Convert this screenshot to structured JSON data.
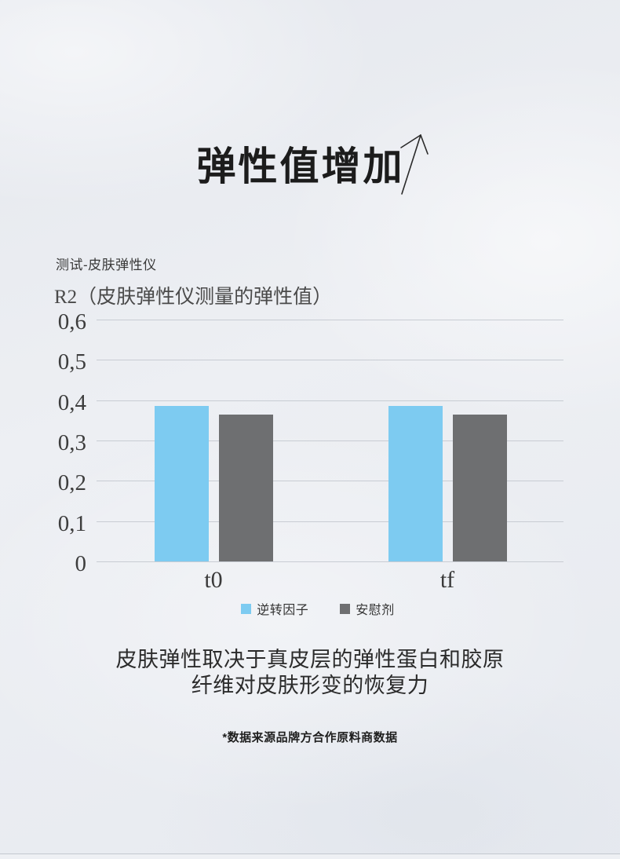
{
  "header": {
    "title": "弹性值增加",
    "arrow_icon": "hand-drawn-up-right-arrow"
  },
  "test_label": "测试-皮肤弹性仪",
  "chart_data": {
    "type": "bar",
    "axis_title": "R2（皮肤弹性仪测量的弹性值）",
    "categories": [
      "t0",
      "tf"
    ],
    "series": [
      {
        "name": "逆转因子",
        "color": "#7dcbf1",
        "values": [
          0.385,
          0.385
        ]
      },
      {
        "name": "安慰剂",
        "color": "#6e6f71",
        "values": [
          0.365,
          0.365
        ]
      }
    ],
    "ylim": [
      0,
      0.6
    ],
    "ytick_step": 0.1,
    "ytick_labels": [
      "0,6",
      "0,5",
      "0,4",
      "0,3",
      "0,2",
      "0,1",
      "0"
    ],
    "decimal_separator": ",",
    "grid": true,
    "legend_position": "bottom"
  },
  "description": {
    "line1": "皮肤弹性取决于真皮层的弹性蛋白和胶原",
    "line2": "纤维对皮肤形变的恢复力"
  },
  "footnote": "*数据来源品牌方合作原料商数据",
  "colors": {
    "background": "#e9ecf1",
    "grid_line": "#c8ccd3",
    "series_blue": "#7dcbf1",
    "series_gray": "#6e6f71",
    "title_text": "#1c1c1c"
  }
}
